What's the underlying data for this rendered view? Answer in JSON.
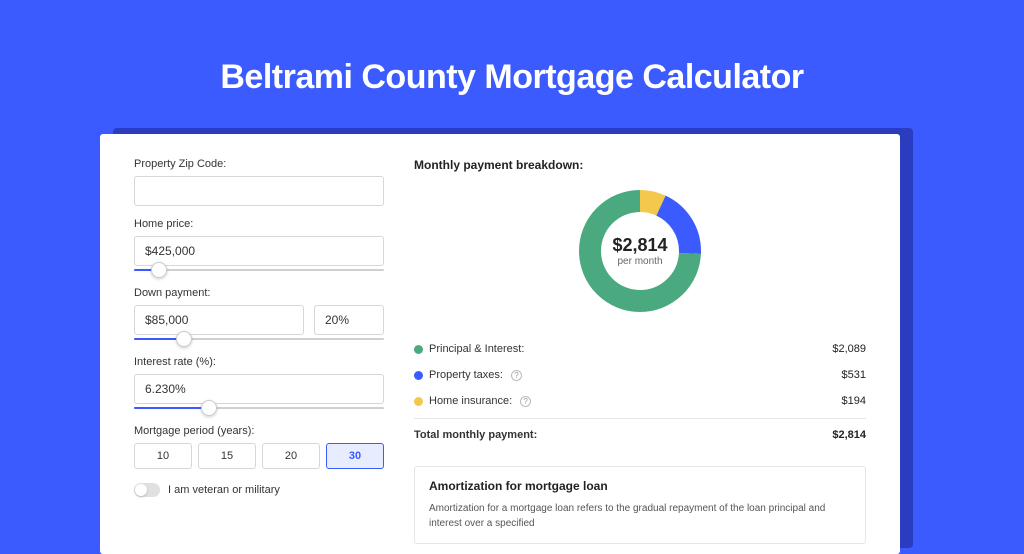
{
  "colors": {
    "page_bg": "#3b5bff",
    "card_bg": "#ffffff",
    "card_shadow": "#2a3cbf",
    "accent": "#3b5bff",
    "text": "#333333",
    "border": "#d7d7d7"
  },
  "title": "Beltrami County Mortgage Calculator",
  "form": {
    "zip": {
      "label": "Property Zip Code:",
      "value": ""
    },
    "price": {
      "label": "Home price:",
      "value": "$425,000",
      "slider_pct": 10
    },
    "down": {
      "label": "Down payment:",
      "value": "$85,000",
      "pct": "20%",
      "slider_pct": 20
    },
    "rate": {
      "label": "Interest rate (%):",
      "value": "6.230%",
      "slider_pct": 30
    },
    "period": {
      "label": "Mortgage period (years):",
      "options": [
        "10",
        "15",
        "20",
        "30"
      ],
      "active": "30"
    },
    "veteran": {
      "label": "I am veteran or military",
      "on": false
    }
  },
  "breakdown": {
    "title": "Monthly payment breakdown:",
    "center_value": "$2,814",
    "center_sub": "per month",
    "items": [
      {
        "label": "Principal & Interest:",
        "value": "$2,089",
        "amount": 2089,
        "color": "#4aa97e",
        "info": false
      },
      {
        "label": "Property taxes:",
        "value": "$531",
        "amount": 531,
        "color": "#3b5bff",
        "info": true
      },
      {
        "label": "Home insurance:",
        "value": "$194",
        "amount": 194,
        "color": "#f2c94c",
        "info": true
      }
    ],
    "total_label": "Total monthly payment:",
    "total_value": "$2,814",
    "donut": {
      "radius": 50,
      "stroke": 22,
      "bg": "#ffffff"
    }
  },
  "amortization": {
    "title": "Amortization for mortgage loan",
    "text": "Amortization for a mortgage loan refers to the gradual repayment of the loan principal and interest over a specified"
  }
}
